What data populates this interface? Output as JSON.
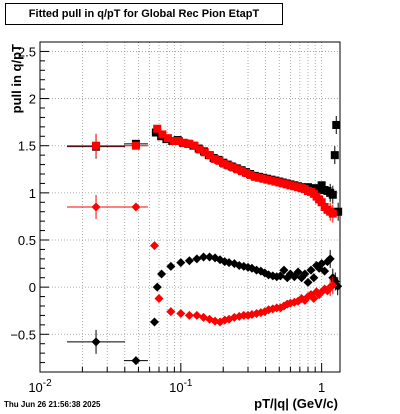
{
  "title": "Fitted pull in q/pT for Global Rec Pion EtapT",
  "timestamp": "Thu Jun 26 21:56:38 2025",
  "chart_data": {
    "type": "scatter",
    "xlabel": "pT/|q| (GeV/c)",
    "ylabel": "pull in q/pT",
    "xscale": "log",
    "xlim": [
      0.01,
      1.35
    ],
    "ylim": [
      -0.9,
      2.6
    ],
    "grid": true,
    "x_tick_labels": [
      "10^-2",
      "10^-1",
      "1"
    ],
    "y_tick_labels": [
      "−0.5",
      "0",
      "0.5",
      "1",
      "1.5",
      "2",
      "2.5"
    ],
    "colors": {
      "black": "#000000",
      "red": "#ff0000"
    },
    "series": [
      {
        "color": "black",
        "marker": "square",
        "points": [
          [
            0.025,
            1.49
          ],
          [
            0.048,
            1.52
          ],
          [
            0.0665,
            1.64
          ],
          [
            0.0725,
            1.6
          ],
          [
            0.079,
            1.57
          ],
          [
            0.087,
            1.55
          ],
          [
            0.095,
            1.56
          ],
          [
            0.104,
            1.53
          ],
          [
            0.113,
            1.52
          ],
          [
            0.123,
            1.5
          ],
          [
            0.134,
            1.47
          ],
          [
            0.146,
            1.44
          ],
          [
            0.158,
            1.4
          ],
          [
            0.171,
            1.37
          ],
          [
            0.185,
            1.35
          ],
          [
            0.2,
            1.32
          ],
          [
            0.215,
            1.3
          ],
          [
            0.23,
            1.28
          ],
          [
            0.25,
            1.26
          ],
          [
            0.27,
            1.24
          ],
          [
            0.29,
            1.22
          ],
          [
            0.31,
            1.2
          ],
          [
            0.335,
            1.18
          ],
          [
            0.36,
            1.17
          ],
          [
            0.385,
            1.16
          ],
          [
            0.41,
            1.15
          ],
          [
            0.44,
            1.14
          ],
          [
            0.47,
            1.13
          ],
          [
            0.5,
            1.12
          ],
          [
            0.53,
            1.11
          ],
          [
            0.565,
            1.1
          ],
          [
            0.6,
            1.09
          ],
          [
            0.64,
            1.08
          ],
          [
            0.68,
            1.07
          ],
          [
            0.72,
            1.06
          ],
          [
            0.76,
            1.05
          ],
          [
            0.8,
            1.06
          ],
          [
            0.84,
            1.04
          ],
          [
            0.88,
            1.05
          ],
          [
            0.92,
            1.04
          ],
          [
            0.96,
            1.03
          ],
          [
            1.0,
            1.08
          ],
          [
            1.05,
            1.03
          ],
          [
            1.1,
            1.02
          ],
          [
            1.15,
            1.0
          ],
          [
            1.2,
            0.98
          ],
          [
            1.24,
            1.4
          ],
          [
            1.27,
            1.72
          ],
          [
            1.31,
            0.8
          ]
        ]
      },
      {
        "color": "red",
        "marker": "square",
        "points": [
          [
            0.025,
            1.5
          ],
          [
            0.048,
            1.5
          ],
          [
            0.068,
            1.68
          ],
          [
            0.074,
            1.62
          ],
          [
            0.081,
            1.58
          ],
          [
            0.089,
            1.55
          ],
          [
            0.097,
            1.55
          ],
          [
            0.106,
            1.53
          ],
          [
            0.115,
            1.52
          ],
          [
            0.125,
            1.5
          ],
          [
            0.136,
            1.46
          ],
          [
            0.148,
            1.43
          ],
          [
            0.161,
            1.4
          ],
          [
            0.174,
            1.36
          ],
          [
            0.188,
            1.34
          ],
          [
            0.203,
            1.31
          ],
          [
            0.218,
            1.29
          ],
          [
            0.235,
            1.27
          ],
          [
            0.253,
            1.25
          ],
          [
            0.272,
            1.23
          ],
          [
            0.292,
            1.21
          ],
          [
            0.313,
            1.19
          ],
          [
            0.336,
            1.17
          ],
          [
            0.36,
            1.16
          ],
          [
            0.385,
            1.15
          ],
          [
            0.412,
            1.14
          ],
          [
            0.44,
            1.13
          ],
          [
            0.47,
            1.12
          ],
          [
            0.5,
            1.11
          ],
          [
            0.53,
            1.1
          ],
          [
            0.565,
            1.09
          ],
          [
            0.6,
            1.08
          ],
          [
            0.64,
            1.07
          ],
          [
            0.68,
            1.06
          ],
          [
            0.72,
            1.05
          ],
          [
            0.76,
            1.04
          ],
          [
            0.8,
            1.02
          ],
          [
            0.84,
            1.01
          ],
          [
            0.88,
            0.99
          ],
          [
            0.92,
            0.96
          ],
          [
            0.96,
            0.93
          ],
          [
            1.0,
            0.9
          ],
          [
            1.05,
            0.85
          ],
          [
            1.1,
            0.82
          ],
          [
            1.15,
            0.8
          ],
          [
            1.2,
            0.78
          ]
        ]
      },
      {
        "color": "black",
        "marker": "diamond",
        "points": [
          [
            0.025,
            -0.58
          ],
          [
            0.048,
            -0.78
          ],
          [
            0.065,
            -0.37
          ],
          [
            0.068,
            0.0
          ],
          [
            0.073,
            0.14
          ],
          [
            0.085,
            0.22
          ],
          [
            0.1,
            0.26
          ],
          [
            0.115,
            0.28
          ],
          [
            0.13,
            0.3
          ],
          [
            0.145,
            0.32
          ],
          [
            0.16,
            0.32
          ],
          [
            0.175,
            0.31
          ],
          [
            0.19,
            0.29
          ],
          [
            0.205,
            0.27
          ],
          [
            0.22,
            0.26
          ],
          [
            0.24,
            0.25
          ],
          [
            0.26,
            0.23
          ],
          [
            0.28,
            0.22
          ],
          [
            0.3,
            0.21
          ],
          [
            0.32,
            0.2
          ],
          [
            0.345,
            0.18
          ],
          [
            0.37,
            0.17
          ],
          [
            0.395,
            0.15
          ],
          [
            0.42,
            0.13
          ],
          [
            0.45,
            0.12
          ],
          [
            0.48,
            0.11
          ],
          [
            0.51,
            0.12
          ],
          [
            0.54,
            0.18
          ],
          [
            0.57,
            0.1
          ],
          [
            0.6,
            0.14
          ],
          [
            0.64,
            0.11
          ],
          [
            0.68,
            0.16
          ],
          [
            0.72,
            0.1
          ],
          [
            0.76,
            0.14
          ],
          [
            0.8,
            0.05
          ],
          [
            0.84,
            0.18
          ],
          [
            0.88,
            0.1
          ],
          [
            0.92,
            0.23
          ],
          [
            0.96,
            0.2
          ],
          [
            1.0,
            0.25
          ],
          [
            1.05,
            0.17
          ],
          [
            1.1,
            0.27
          ],
          [
            1.15,
            0.3
          ],
          [
            1.2,
            0.1
          ],
          [
            1.25,
            0.06
          ],
          [
            1.3,
            0.01
          ]
        ]
      },
      {
        "color": "red",
        "marker": "diamond",
        "points": [
          [
            0.025,
            0.85
          ],
          [
            0.048,
            0.85
          ],
          [
            0.065,
            0.44
          ],
          [
            0.07,
            -0.12
          ],
          [
            0.085,
            -0.26
          ],
          [
            0.1,
            -0.28
          ],
          [
            0.115,
            -0.3
          ],
          [
            0.13,
            -0.3
          ],
          [
            0.145,
            -0.32
          ],
          [
            0.16,
            -0.34
          ],
          [
            0.175,
            -0.36
          ],
          [
            0.19,
            -0.37
          ],
          [
            0.205,
            -0.35
          ],
          [
            0.22,
            -0.34
          ],
          [
            0.24,
            -0.32
          ],
          [
            0.26,
            -0.31
          ],
          [
            0.28,
            -0.3
          ],
          [
            0.3,
            -0.3
          ],
          [
            0.32,
            -0.29
          ],
          [
            0.345,
            -0.28
          ],
          [
            0.37,
            -0.27
          ],
          [
            0.395,
            -0.26
          ],
          [
            0.42,
            -0.24
          ],
          [
            0.45,
            -0.23
          ],
          [
            0.48,
            -0.22
          ],
          [
            0.51,
            -0.22
          ],
          [
            0.54,
            -0.2
          ],
          [
            0.57,
            -0.18
          ],
          [
            0.6,
            -0.17
          ],
          [
            0.64,
            -0.16
          ],
          [
            0.68,
            -0.15
          ],
          [
            0.72,
            -0.12
          ],
          [
            0.76,
            -0.14
          ],
          [
            0.8,
            -0.1
          ],
          [
            0.84,
            -0.08
          ],
          [
            0.88,
            -0.12
          ],
          [
            0.92,
            -0.05
          ],
          [
            0.96,
            -0.08
          ],
          [
            1.0,
            -0.05
          ],
          [
            1.05,
            -0.02
          ],
          [
            1.1,
            -0.04
          ],
          [
            1.15,
            0.0
          ],
          [
            1.2,
            0.02
          ]
        ]
      }
    ]
  }
}
